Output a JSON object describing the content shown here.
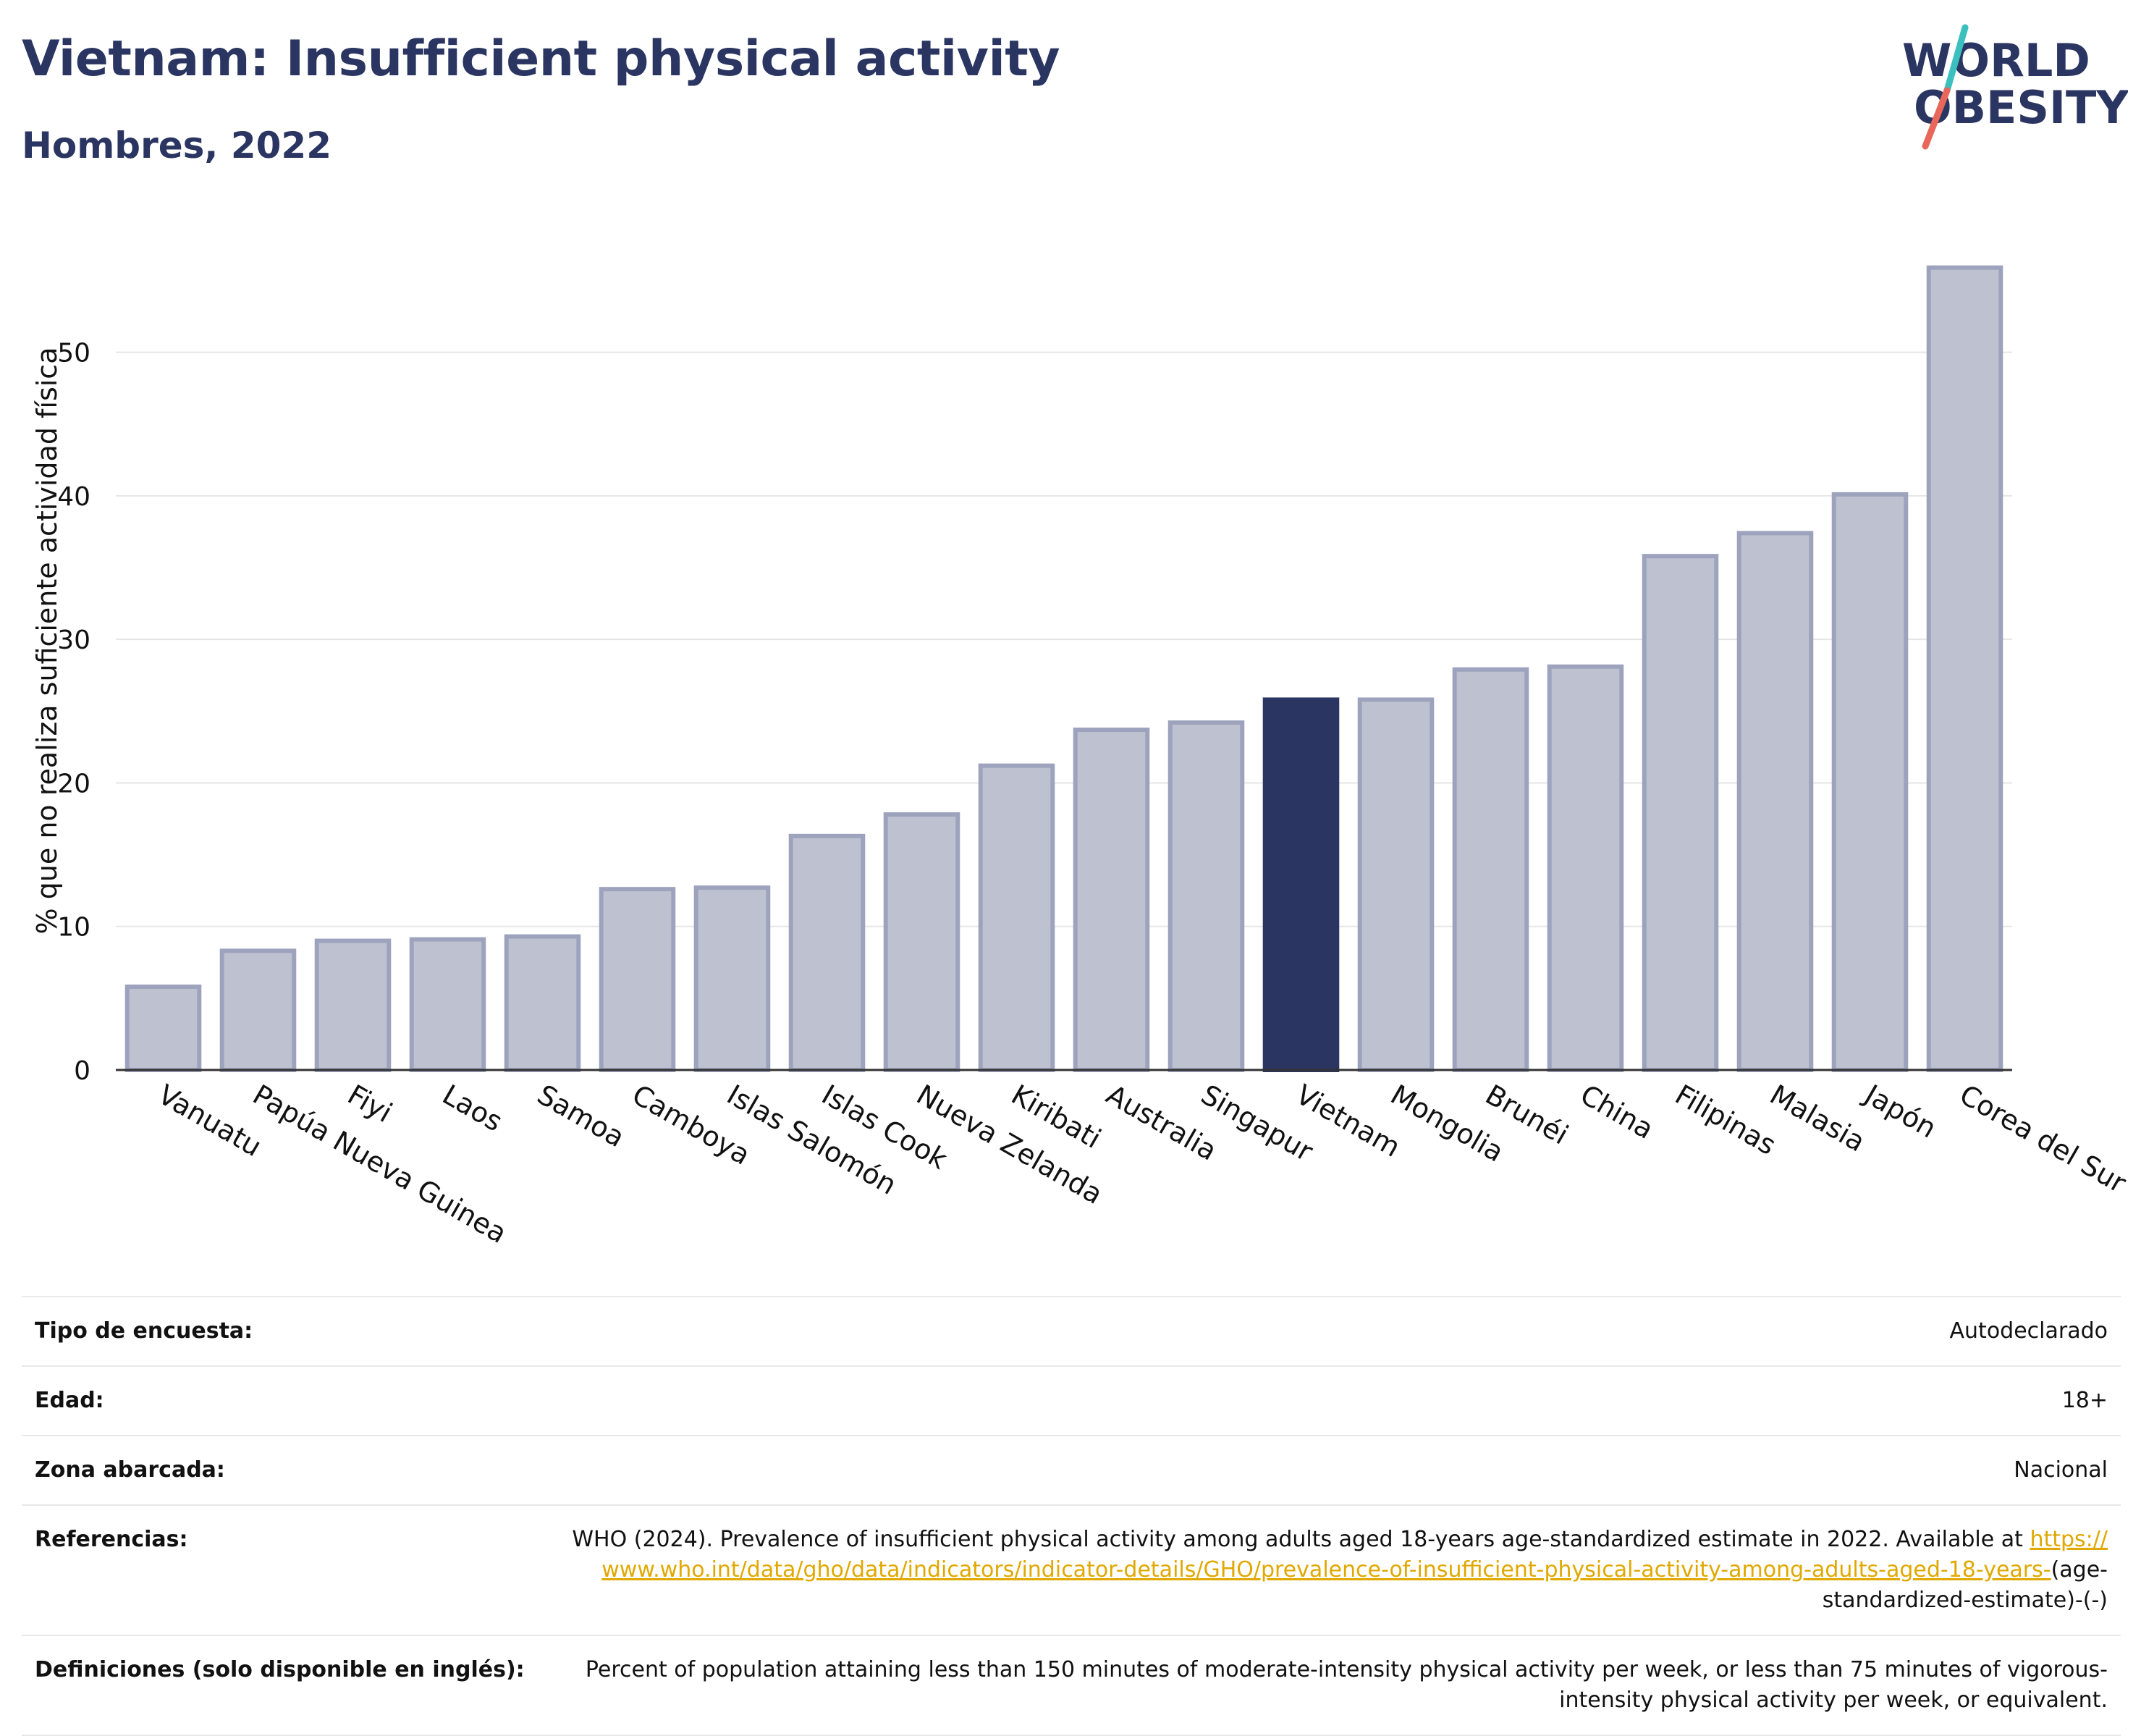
{
  "header": {
    "title": "Vietnam: Insufficient physical activity",
    "subtitle": "Hombres, 2022"
  },
  "logo": {
    "line1": "WORLD",
    "line2": "OBESITY",
    "colors": {
      "text": "#2a3561",
      "slash_top": "#3bbfbf",
      "slash_bottom": "#e8675a"
    }
  },
  "colors": {
    "highlight": "#2a3561",
    "bar_fill": "#bec2d0",
    "bar_stroke": "#9da3bd",
    "grid": "#e6e6e6",
    "axis": "#333333",
    "link": "#e0a800"
  },
  "chart_data": {
    "type": "bar",
    "title": "",
    "xlabel": "",
    "ylabel": "% que no realiza suficiente actividad física",
    "ylim": [
      0,
      58
    ],
    "yticks": [
      0,
      10,
      20,
      30,
      40,
      50
    ],
    "grid": true,
    "highlight": "Vietnam",
    "categories": [
      "Vanuatu",
      "Papúa Nueva Guinea",
      "Fiyi",
      "Laos",
      "Samoa",
      "Camboya",
      "Islas Salomón",
      "Islas Cook",
      "Nueva Zelanda",
      "Kiribati",
      "Australia",
      "Singapur",
      "Vietnam",
      "Mongolia",
      "Brunéi",
      "China",
      "Filipinas",
      "Malasia",
      "Japón",
      "Corea del Sur"
    ],
    "values": [
      5.8,
      8.3,
      9.0,
      9.1,
      9.3,
      12.6,
      12.7,
      16.3,
      17.8,
      21.2,
      23.7,
      24.2,
      25.8,
      25.8,
      27.9,
      28.1,
      35.8,
      37.4,
      40.1,
      55.9
    ]
  },
  "meta": [
    {
      "key": "Tipo de encuesta:",
      "value": "Autodeclarado"
    },
    {
      "key": "Edad:",
      "value": "18+"
    },
    {
      "key": "Zona abarcada:",
      "value": "Nacional"
    },
    {
      "key": "Referencias:",
      "value": "WHO (2024). Prevalence of insufficient physical activity among adults aged 18-years age-standardized estimate in 2022. Available at",
      "link": "https://www.who.int/data/gho/data/indicators/indicator-details/GHO/prevalence-of-insufficient-physical-activity-among-adults-aged-18-years-",
      "suffix": "(age-standardized-estimate)-(-)"
    },
    {
      "key": "Definiciones (solo disponible en inglés):",
      "value": "Percent of population attaining less than 150 minutes of moderate-intensity physical activity per week, or less than 75 minutes of vigorous-intensity physical activity per week, or equivalent."
    }
  ]
}
